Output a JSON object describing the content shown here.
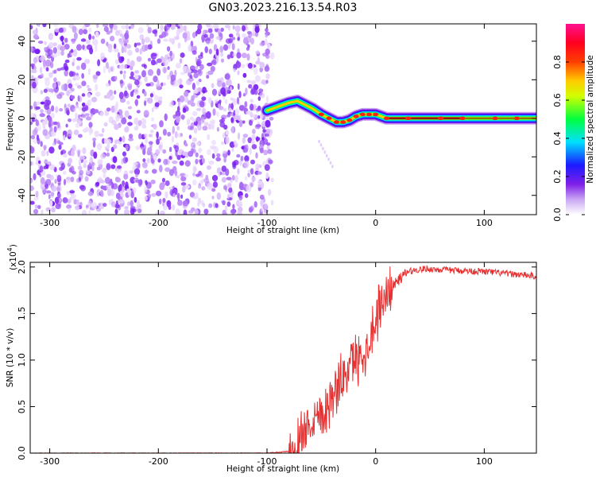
{
  "title": "GN03.2023.216.13.54.R03",
  "chart_data": [
    {
      "type": "heatmap",
      "xlabel": "Height of straight line (km)",
      "ylabel": "Frequency (Hz)",
      "xlim": [
        -318,
        148
      ],
      "ylim": [
        -50,
        49
      ],
      "xticks": [
        -300,
        -200,
        -100,
        0,
        100
      ],
      "yticks": [
        -40,
        -20,
        0,
        20,
        40
      ],
      "noise_region_x": [
        -318,
        -95
      ],
      "signal_track": {
        "x": [
          -100,
          -90,
          -80,
          -72,
          -65,
          -58,
          -50,
          -43,
          -36,
          -30,
          -24,
          -18,
          -12,
          -6,
          0,
          10,
          30,
          60,
          80,
          90,
          110,
          130,
          148
        ],
        "y": [
          4,
          6,
          8,
          9,
          7,
          5,
          2,
          0,
          -2,
          -2,
          -1,
          1,
          2,
          2,
          2,
          0,
          0,
          0,
          0,
          0,
          0,
          0,
          0
        ],
        "amplitude": [
          0.3,
          0.45,
          0.5,
          0.55,
          0.55,
          0.6,
          0.7,
          0.7,
          0.75,
          0.7,
          0.7,
          0.75,
          0.7,
          0.7,
          0.7,
          0.85,
          0.9,
          0.92,
          0.9,
          0.6,
          0.7,
          0.75,
          0.6
        ]
      },
      "colorbar": {
        "label": "Normalized spectral amplitude",
        "range": [
          0.0,
          1.0
        ],
        "ticks": [
          "0.0",
          "0.2",
          "0.4",
          "0.6",
          "0.8"
        ],
        "colors": [
          "#ffffff",
          "#8a2be2",
          "#0000ff",
          "#00ffff",
          "#00ff00",
          "#ffff00",
          "#ff8000",
          "#ff0000",
          "#ff1493"
        ]
      }
    },
    {
      "type": "line",
      "xlabel": "Height of straight line (km)",
      "ylabel": "SNR (10 * v/v)",
      "yscale_label": "(x10",
      "yscale_exp": "4",
      "xlim": [
        -318,
        148
      ],
      "ylim": [
        0,
        2.05
      ],
      "xticks": [
        -300,
        -200,
        -100,
        0,
        100
      ],
      "yticks": [
        "0.0",
        "0.5",
        "1.0",
        "1.5",
        "2.0"
      ],
      "color": "#e83030",
      "x": [
        -318,
        -200,
        -100,
        -80,
        -72,
        -65,
        -55,
        -45,
        -38,
        -30,
        -25,
        -18,
        -12,
        -8,
        -4,
        0,
        5,
        10,
        15,
        20,
        25,
        30,
        38,
        45,
        60,
        80,
        100,
        110,
        120,
        130,
        140,
        148
      ],
      "y": [
        0.0,
        0.0,
        0.0,
        0.02,
        0.1,
        0.3,
        0.4,
        0.5,
        0.65,
        0.8,
        0.95,
        1.0,
        1.1,
        1.1,
        1.3,
        1.45,
        1.6,
        1.7,
        1.78,
        1.85,
        1.9,
        1.95,
        1.97,
        1.98,
        1.97,
        1.96,
        1.95,
        1.94,
        1.93,
        1.92,
        1.91,
        1.9
      ]
    }
  ]
}
